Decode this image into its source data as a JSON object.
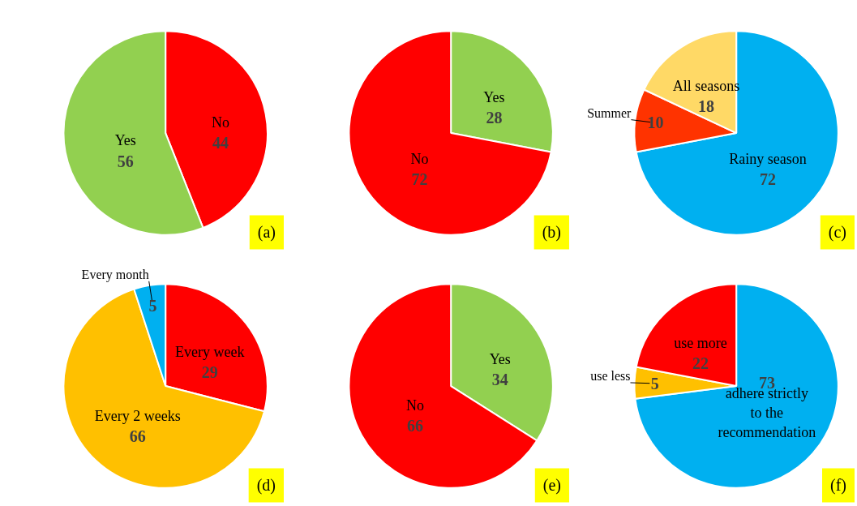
{
  "chart_data": [
    {
      "type": "pie",
      "title": "(a)",
      "categories": [
        "No",
        "Yes"
      ],
      "values": [
        44,
        56
      ],
      "colors": [
        "#ff0000",
        "#92d050"
      ],
      "data_labels": true
    },
    {
      "type": "pie",
      "title": "(b)",
      "categories": [
        "Yes",
        "No"
      ],
      "values": [
        28,
        72
      ],
      "colors": [
        "#92d050",
        "#ff0000"
      ],
      "data_labels": true
    },
    {
      "type": "pie",
      "title": "(c)",
      "categories": [
        "Rainy season",
        "Summer",
        "All seasons"
      ],
      "values": [
        72,
        10,
        18
      ],
      "colors": [
        "#00b0f0",
        "#ff3300",
        "#ffd966"
      ],
      "data_labels": true
    },
    {
      "type": "pie",
      "title": "(d)",
      "categories": [
        "Every week",
        "Every 2 weeks",
        "Every month"
      ],
      "values": [
        29,
        66,
        5
      ],
      "colors": [
        "#ff0000",
        "#ffc000",
        "#00b0f0"
      ],
      "data_labels": true
    },
    {
      "type": "pie",
      "title": "(e)",
      "categories": [
        "Yes",
        "No"
      ],
      "values": [
        34,
        66
      ],
      "colors": [
        "#92d050",
        "#ff0000"
      ],
      "data_labels": true
    },
    {
      "type": "pie",
      "title": "(f)",
      "categories": [
        "adhere strictly to the recommendation",
        "use less",
        "use more"
      ],
      "values": [
        73,
        5,
        22
      ],
      "colors": [
        "#00b0f0",
        "#ffc000",
        "#ff0000"
      ],
      "data_labels": true
    }
  ]
}
